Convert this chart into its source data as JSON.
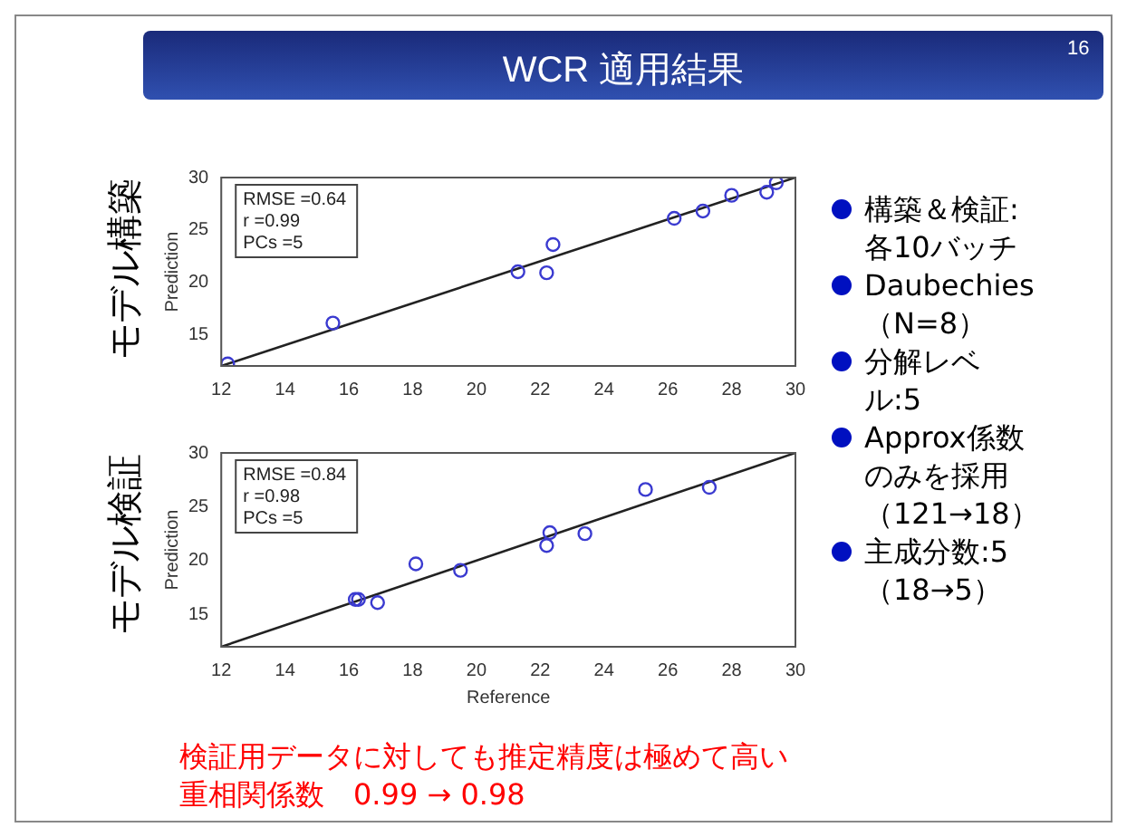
{
  "chart_data": [
    {
      "type": "scatter",
      "ylabel": "Prediction",
      "annotations": [
        "モデル構築",
        "RMSE =0.64",
        "r =0.99",
        "PCs =5"
      ],
      "xlim": [
        12,
        30
      ],
      "ylim": [
        12,
        30
      ],
      "xticks": [
        12,
        14,
        16,
        18,
        20,
        22,
        24,
        26,
        28,
        30
      ],
      "yticks": [
        15,
        20,
        25,
        30
      ],
      "grid": false,
      "legend": false,
      "marker": "circle",
      "series": [
        {
          "type": "scatter",
          "color": "#3a3ad0",
          "x": [
            12.2,
            15.5,
            21.3,
            22.2,
            22.4,
            26.2,
            27.1,
            28.0,
            29.1,
            29.4
          ],
          "values": [
            12.2,
            16.1,
            21.0,
            20.9,
            23.6,
            26.1,
            26.8,
            28.3,
            28.6,
            29.5
          ]
        },
        {
          "type": "line",
          "color": "#222222",
          "marker": "none",
          "x": [
            12,
            30
          ],
          "values": [
            12,
            30
          ]
        }
      ]
    },
    {
      "type": "scatter",
      "xlabel": "Reference",
      "ylabel": "Prediction",
      "annotations": [
        "モデル検証",
        "RMSE =0.84",
        "r =0.98",
        "PCs =5"
      ],
      "xlim": [
        12,
        30
      ],
      "ylim": [
        12,
        30
      ],
      "xticks": [
        12,
        14,
        16,
        18,
        20,
        22,
        24,
        26,
        28,
        30
      ],
      "yticks": [
        15,
        20,
        25,
        30
      ],
      "grid": false,
      "legend": false,
      "marker": "circle",
      "series": [
        {
          "type": "scatter",
          "color": "#3a3ad0",
          "x": [
            16.2,
            16.3,
            16.9,
            18.1,
            19.5,
            22.2,
            22.3,
            23.4,
            25.3,
            27.3
          ],
          "values": [
            16.4,
            16.4,
            16.1,
            19.7,
            19.1,
            21.4,
            22.6,
            22.5,
            26.6,
            26.8
          ]
        },
        {
          "type": "line",
          "color": "#222222",
          "marker": "none",
          "x": [
            12,
            30
          ],
          "values": [
            12,
            30
          ]
        }
      ]
    },
    {
      "type": "other",
      "title": "WCR 適用結果",
      "annotations": [
        "16",
        "構築＆検証:\n各10バッチ",
        "Daubechies\n（N=8）",
        "分解レベル:5",
        "Approx係数のみを採用（121→18）",
        "主成分数:5\n（18→5）",
        "検証用データに対しても推定精度は極めて高い",
        "重相関係数　0.99 → 0.98"
      ]
    }
  ]
}
